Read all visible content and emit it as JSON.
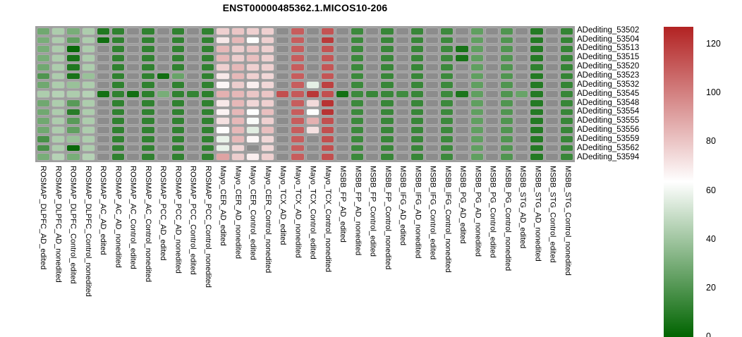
{
  "chart_data": {
    "type": "heatmap",
    "title": "ENST00000485362.1.MICOS10-206",
    "rows": [
      "ADediting_53502",
      "ADediting_53504",
      "ADediting_53513",
      "ADediting_53515",
      "ADediting_53520",
      "ADediting_53523",
      "ADediting_53532",
      "ADediting_53545",
      "ADediting_53548",
      "ADediting_53554",
      "ADediting_53555",
      "ADediting_53556",
      "ADediting_53559",
      "ADediting_53562",
      "ADediting_53594"
    ],
    "columns": [
      "ROSMAP_DLPFC_AD_edited",
      "ROSMAP_DLPFC_AD_nonedited",
      "ROSMAP_DLPFC_Control_edited",
      "ROSMAP_DLPFC_Control_nonedited",
      "ROSMAP_AC_AD_edited",
      "ROSMAP_AC_AD_nonedited",
      "ROSMAP_AC_Control_edited",
      "ROSMAP_AC_Control_nonedited",
      "ROSMAP_PCC_AD_edited",
      "ROSMAP_PCC_AD_nonedited",
      "ROSMAP_PCC_Control_edited",
      "ROSMAP_PCC_Control_nonedited",
      "Mayo_CER_AD_edited",
      "Mayo_CER_AD_nonedited",
      "Mayo_CER_Control_edited",
      "Mayo_CER_Control_nonedited",
      "Mayo_TCX_AD_edited",
      "Mayo_TCX_AD_nonedited",
      "Mayo_TCX_Control_edited",
      "Mayo_TCX_Control_nonedited",
      "MSBB_FP_AD_edited",
      "MSBB_FP_AD_nonedited",
      "MSBB_FP_Control_edited",
      "MSBB_FP_Control_nonedited",
      "MSBB_IFG_AD_edited",
      "MSBB_IFG_AD_nonedited",
      "MSBB_IFG_Control_edited",
      "MSBB_IFG_Control_nonedited",
      "MSBB_PG_AD_edited",
      "MSBB_PG_AD_nonedited",
      "MSBB_PG_Control_edited",
      "MSBB_PG_Control_nonedited",
      "MSBB_STG_AD_edited",
      "MSBB_STG_AD_nonedited",
      "MSBB_STG_Control_edited",
      "MSBB_STG_Control_nonedited"
    ],
    "values": [
      [
        28,
        43,
        30,
        43,
        8,
        12,
        null,
        12,
        null,
        12,
        null,
        12,
        77,
        80,
        77,
        77,
        null,
        110,
        null,
        113,
        null,
        15,
        null,
        14,
        null,
        14,
        null,
        15,
        null,
        24,
        null,
        20,
        null,
        9,
        null,
        13
      ],
      [
        30,
        43,
        24,
        43,
        4,
        12,
        null,
        12,
        null,
        12,
        null,
        12,
        70,
        84,
        63,
        77,
        null,
        110,
        null,
        120,
        null,
        15,
        null,
        14,
        null,
        14,
        null,
        15,
        null,
        24,
        null,
        20,
        null,
        9,
        null,
        13
      ],
      [
        30,
        43,
        2,
        43,
        null,
        12,
        null,
        12,
        null,
        12,
        null,
        12,
        84,
        78,
        80,
        77,
        null,
        110,
        null,
        113,
        null,
        15,
        null,
        14,
        null,
        14,
        null,
        15,
        6,
        24,
        null,
        20,
        null,
        9,
        null,
        13
      ],
      [
        30,
        43,
        6,
        43,
        null,
        12,
        null,
        12,
        null,
        12,
        null,
        12,
        84,
        78,
        82,
        77,
        null,
        110,
        null,
        112,
        null,
        15,
        null,
        14,
        null,
        14,
        null,
        15,
        6,
        24,
        null,
        20,
        null,
        9,
        null,
        13
      ],
      [
        28,
        43,
        8,
        43,
        null,
        12,
        null,
        12,
        null,
        12,
        null,
        12,
        77,
        84,
        77,
        77,
        null,
        110,
        null,
        112,
        null,
        15,
        null,
        14,
        null,
        14,
        null,
        15,
        null,
        24,
        null,
        20,
        null,
        12,
        null,
        13
      ],
      [
        20,
        43,
        6,
        38,
        null,
        12,
        null,
        12,
        4,
        26,
        null,
        12,
        70,
        84,
        77,
        75,
        null,
        110,
        null,
        112,
        null,
        15,
        null,
        14,
        null,
        14,
        null,
        15,
        null,
        24,
        null,
        20,
        null,
        9,
        null,
        13
      ],
      [
        28,
        43,
        38,
        43,
        null,
        12,
        null,
        12,
        null,
        12,
        null,
        12,
        66,
        78,
        68,
        75,
        null,
        110,
        57,
        118,
        null,
        15,
        null,
        14,
        null,
        14,
        null,
        15,
        null,
        24,
        null,
        20,
        null,
        9,
        null,
        13
      ],
      [
        43,
        45,
        43,
        45,
        5,
        12,
        4,
        11,
        30,
        12,
        13,
        11,
        86,
        84,
        80,
        80,
        114,
        111,
        121,
        114,
        5,
        15,
        14,
        14,
        16,
        14,
        null,
        15,
        7,
        24,
        null,
        20,
        26,
        9,
        null,
        14
      ],
      [
        28,
        43,
        22,
        43,
        null,
        12,
        null,
        12,
        null,
        12,
        null,
        12,
        70,
        84,
        75,
        77,
        null,
        110,
        74,
        122,
        null,
        15,
        null,
        14,
        null,
        14,
        null,
        15,
        null,
        24,
        null,
        20,
        null,
        9,
        null,
        14
      ],
      [
        28,
        43,
        10,
        43,
        null,
        12,
        null,
        12,
        null,
        12,
        null,
        12,
        67,
        84,
        63,
        82,
        null,
        110,
        63,
        122,
        null,
        15,
        null,
        14,
        null,
        14,
        null,
        15,
        null,
        24,
        null,
        20,
        null,
        9,
        null,
        14
      ],
      [
        28,
        43,
        22,
        43,
        null,
        12,
        null,
        12,
        null,
        12,
        null,
        12,
        72,
        84,
        62,
        77,
        null,
        110,
        86,
        114,
        null,
        15,
        null,
        14,
        null,
        14,
        null,
        15,
        null,
        24,
        null,
        20,
        null,
        9,
        null,
        14
      ],
      [
        28,
        43,
        24,
        43,
        null,
        12,
        null,
        12,
        null,
        12,
        null,
        12,
        64,
        84,
        56,
        82,
        null,
        110,
        72,
        114,
        null,
        15,
        null,
        14,
        null,
        14,
        null,
        15,
        null,
        24,
        null,
        20,
        null,
        9,
        null,
        14
      ],
      [
        18,
        43,
        38,
        43,
        null,
        12,
        null,
        12,
        null,
        12,
        null,
        12,
        58,
        84,
        66,
        75,
        null,
        110,
        null,
        114,
        null,
        15,
        null,
        14,
        null,
        14,
        null,
        15,
        null,
        24,
        null,
        20,
        null,
        9,
        null,
        14
      ],
      [
        18,
        43,
        2,
        43,
        null,
        12,
        null,
        12,
        null,
        12,
        null,
        12,
        58,
        75,
        null,
        75,
        null,
        110,
        null,
        114,
        null,
        15,
        null,
        14,
        null,
        14,
        null,
        15,
        null,
        24,
        null,
        20,
        null,
        9,
        null,
        14
      ],
      [
        30,
        45,
        30,
        45,
        null,
        12,
        null,
        12,
        null,
        12,
        null,
        12,
        90,
        78,
        68,
        77,
        null,
        110,
        null,
        114,
        null,
        15,
        null,
        14,
        null,
        14,
        null,
        15,
        null,
        24,
        null,
        20,
        null,
        9,
        null,
        14
      ]
    ],
    "scale": {
      "min": 0,
      "mid": 63.5,
      "max": 127,
      "min_color": "#006400",
      "mid_color": "#ffffff",
      "max_color": "#b22222",
      "na_color": "#8c8c8c",
      "grid_color": "#9e9e9e"
    },
    "colorbar_ticks": [
      120,
      100,
      80,
      60,
      40,
      20,
      0
    ],
    "legend_position": "right",
    "xlabel": "",
    "ylabel": ""
  }
}
